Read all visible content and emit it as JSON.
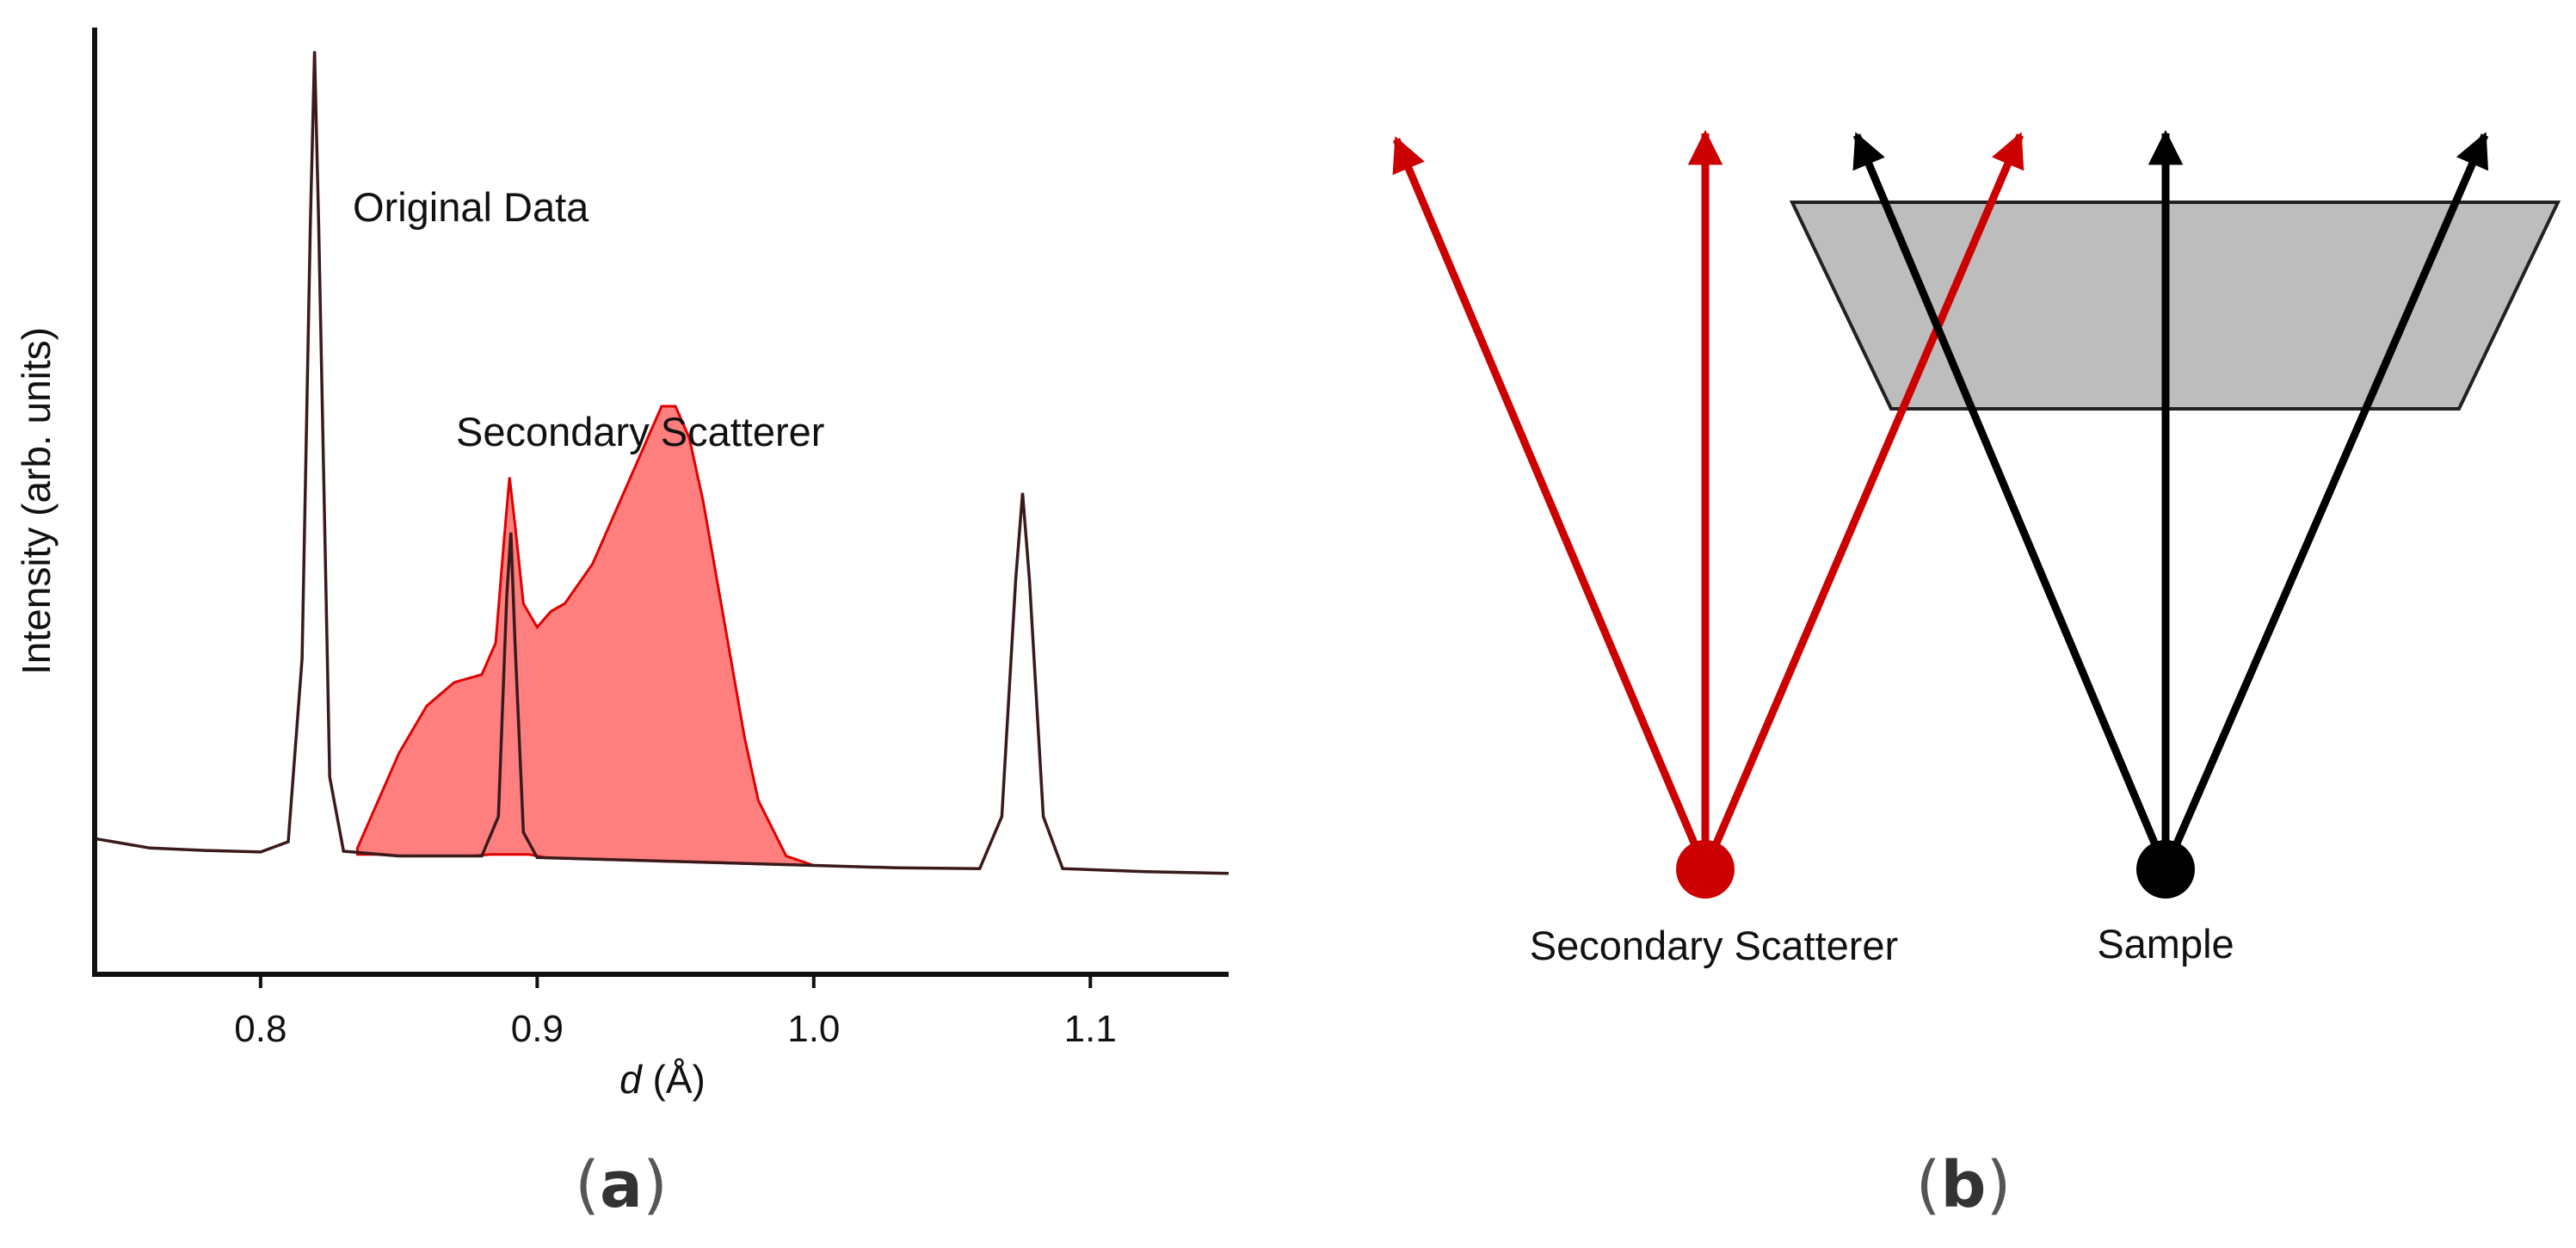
{
  "panels": {
    "a": {
      "open": "(",
      "letter": "a",
      "close": ")"
    },
    "b": {
      "open": "(",
      "letter": "b",
      "close": ")"
    }
  },
  "colors": {
    "secondary": "#cc0000",
    "secondary_fill": "#ff7f7f",
    "sample": "#000000",
    "detector_fill": "#bdbdbd",
    "original_line": "#3a1a1a"
  },
  "chart_data": [
    {
      "type": "line",
      "xlabel_italic": "d",
      "xlabel_rest": " (Å)",
      "ylabel": "Intensity (arb. units)",
      "xlim": [
        0.74,
        1.15
      ],
      "ylim": [
        0,
        1.2
      ],
      "xticks": [
        0.8,
        0.9,
        1.0,
        1.1
      ],
      "xtick_labels": [
        "0.8",
        "0.9",
        "1.0",
        "1.1"
      ],
      "grid": false,
      "annotations": [
        "Original Data",
        "Secondary Scatterer"
      ],
      "series": [
        {
          "name": "Original Data",
          "x": [
            0.74,
            0.76,
            0.78,
            0.8,
            0.81,
            0.815,
            0.818,
            0.8195,
            0.821,
            0.825,
            0.83,
            0.85,
            0.88,
            0.886,
            0.889,
            0.8905,
            0.892,
            0.895,
            0.9,
            0.95,
            1.0,
            1.03,
            1.06,
            1.068,
            1.073,
            1.0755,
            1.078,
            1.083,
            1.09,
            1.12,
            1.15
          ],
          "y": [
            0.172,
            0.16,
            0.157,
            0.155,
            0.168,
            0.4,
            0.95,
            1.17,
            0.95,
            0.25,
            0.156,
            0.15,
            0.15,
            0.2,
            0.48,
            0.56,
            0.42,
            0.18,
            0.148,
            0.143,
            0.138,
            0.135,
            0.134,
            0.2,
            0.5,
            0.61,
            0.5,
            0.2,
            0.134,
            0.13,
            0.128
          ]
        },
        {
          "name": "Secondary Scatterer",
          "x": [
            0.835,
            0.84,
            0.85,
            0.86,
            0.87,
            0.88,
            0.885,
            0.888,
            0.89,
            0.892,
            0.895,
            0.9,
            0.905,
            0.91,
            0.92,
            0.93,
            0.94,
            0.945,
            0.95,
            0.955,
            0.96,
            0.965,
            0.97,
            0.975,
            0.98,
            0.99,
            1.0
          ],
          "y": [
            0.16,
            0.2,
            0.28,
            0.34,
            0.37,
            0.38,
            0.42,
            0.55,
            0.63,
            0.57,
            0.47,
            0.44,
            0.46,
            0.47,
            0.52,
            0.6,
            0.68,
            0.72,
            0.72,
            0.68,
            0.6,
            0.5,
            0.4,
            0.3,
            0.22,
            0.15,
            0.138
          ]
        }
      ]
    }
  ],
  "schematic": {
    "labels": {
      "secondary": "Secondary Scatterer",
      "sample": "Sample"
    },
    "sources": [
      {
        "name": "Secondary Scatterer",
        "color": "#cc0000",
        "rays": 3
      },
      {
        "name": "Sample",
        "color": "#000000",
        "rays": 3
      }
    ]
  }
}
